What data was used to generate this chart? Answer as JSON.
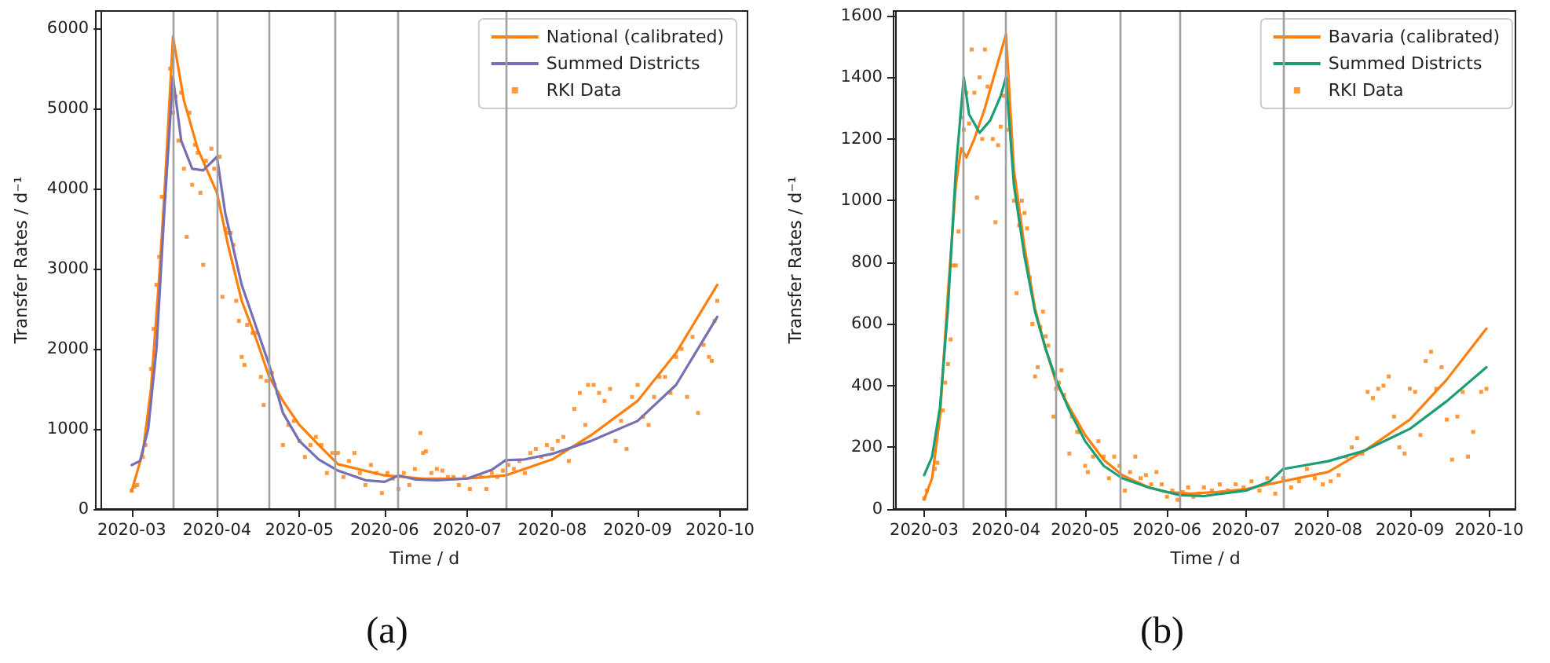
{
  "chart_data": [
    {
      "type": "line",
      "xlabel": "Time / d",
      "ylabel": "Transfer Rates / d⁻¹",
      "annotations": [
        "(a)"
      ],
      "xlim": [
        "2020-02-19",
        "2020-10-11"
      ],
      "xticks": [
        "2020-03",
        "2020-04",
        "2020-05",
        "2020-06",
        "2020-07",
        "2020-08",
        "2020-09",
        "2020-10"
      ],
      "ylim": [
        0,
        6220
      ],
      "yticks": [
        0,
        1000,
        2000,
        3000,
        4000,
        5000,
        6000
      ],
      "grid": false,
      "legend": "top right",
      "marker": "none",
      "line_style": "solid",
      "ref_lines": [
        {
          "axis": "x",
          "value": "2020-03-16",
          "color": "#a0a0a0"
        },
        {
          "axis": "x",
          "value": "2020-04-01",
          "color": "#a0a0a0"
        },
        {
          "axis": "x",
          "value": "2020-04-20",
          "color": "#a0a0a0"
        },
        {
          "axis": "x",
          "value": "2020-05-14",
          "color": "#a0a0a0"
        },
        {
          "axis": "x",
          "value": "2020-06-06",
          "color": "#a0a0a0"
        },
        {
          "axis": "x",
          "value": "2020-07-15",
          "color": "#a0a0a0"
        }
      ],
      "series": [
        {
          "name": "National (calibrated)",
          "color": "#ff7f0e",
          "x": [
            "2020-03-01",
            "2020-03-05",
            "2020-03-08",
            "2020-03-11",
            "2020-03-13",
            "2020-03-16",
            "2020-03-20",
            "2020-03-25",
            "2020-04-01",
            "2020-04-05",
            "2020-04-10",
            "2020-04-15",
            "2020-04-20",
            "2020-04-25",
            "2020-05-01",
            "2020-05-08",
            "2020-05-15",
            "2020-06-01",
            "2020-06-15",
            "2020-07-01",
            "2020-07-15",
            "2020-08-01",
            "2020-08-15",
            "2020-09-01",
            "2020-09-15",
            "2020-09-30"
          ],
          "values": [
            230,
            700,
            1500,
            2900,
            4000,
            5900,
            5100,
            4500,
            3950,
            3300,
            2600,
            2150,
            1650,
            1350,
            1050,
            800,
            560,
            420,
            380,
            380,
            420,
            620,
            920,
            1350,
            1950,
            2800
          ]
        },
        {
          "name": "Summed Districts",
          "color": "#7570b3",
          "x": [
            "2020-03-01",
            "2020-03-04",
            "2020-03-07",
            "2020-03-10",
            "2020-03-13",
            "2020-03-16",
            "2020-03-19",
            "2020-03-23",
            "2020-03-27",
            "2020-04-01",
            "2020-04-04",
            "2020-04-10",
            "2020-04-15",
            "2020-04-20",
            "2020-04-25",
            "2020-05-01",
            "2020-05-08",
            "2020-05-15",
            "2020-05-25",
            "2020-06-01",
            "2020-06-06",
            "2020-06-12",
            "2020-06-20",
            "2020-07-01",
            "2020-07-10",
            "2020-07-15",
            "2020-07-22",
            "2020-08-01",
            "2020-08-15",
            "2020-09-01",
            "2020-09-15",
            "2020-09-30"
          ],
          "values": [
            550,
            600,
            1000,
            2000,
            3800,
            5400,
            4600,
            4250,
            4230,
            4400,
            3700,
            2800,
            2300,
            1800,
            1200,
            850,
            620,
            480,
            360,
            340,
            420,
            370,
            360,
            380,
            490,
            610,
            620,
            690,
            850,
            1100,
            1550,
            2400
          ]
        },
        {
          "name": "RKI Data",
          "type": "scatter",
          "marker": "square",
          "color": "#ff7f0e",
          "x": [
            "2020-03-01",
            "2020-03-02",
            "2020-03-03",
            "2020-03-05",
            "2020-03-06",
            "2020-03-07",
            "2020-03-08",
            "2020-03-09",
            "2020-03-10",
            "2020-03-11",
            "2020-03-12",
            "2020-03-13",
            "2020-03-15",
            "2020-03-16",
            "2020-03-17",
            "2020-03-18",
            "2020-03-19",
            "2020-03-20",
            "2020-03-21",
            "2020-03-22",
            "2020-03-23",
            "2020-03-24",
            "2020-03-25",
            "2020-03-26",
            "2020-03-27",
            "2020-03-28",
            "2020-03-30",
            "2020-03-31",
            "2020-04-02",
            "2020-04-03",
            "2020-04-04",
            "2020-04-05",
            "2020-04-06",
            "2020-04-07",
            "2020-04-08",
            "2020-04-09",
            "2020-04-10",
            "2020-04-11",
            "2020-04-12",
            "2020-04-14",
            "2020-04-15",
            "2020-04-17",
            "2020-04-18",
            "2020-04-19",
            "2020-04-21",
            "2020-04-22",
            "2020-04-23",
            "2020-04-25",
            "2020-04-27",
            "2020-04-29",
            "2020-05-01",
            "2020-05-03",
            "2020-05-05",
            "2020-05-07",
            "2020-05-09",
            "2020-05-11",
            "2020-05-13",
            "2020-05-15",
            "2020-05-17",
            "2020-05-19",
            "2020-05-21",
            "2020-05-23",
            "2020-05-25",
            "2020-05-27",
            "2020-05-29",
            "2020-05-31",
            "2020-06-02",
            "2020-06-04",
            "2020-06-06",
            "2020-06-08",
            "2020-06-10",
            "2020-06-12",
            "2020-06-14",
            "2020-06-15",
            "2020-06-16",
            "2020-06-18",
            "2020-06-20",
            "2020-06-22",
            "2020-06-24",
            "2020-06-26",
            "2020-06-28",
            "2020-06-30",
            "2020-07-02",
            "2020-07-04",
            "2020-07-06",
            "2020-07-08",
            "2020-07-10",
            "2020-07-12",
            "2020-07-14",
            "2020-07-16",
            "2020-07-18",
            "2020-07-20",
            "2020-07-22",
            "2020-07-24",
            "2020-07-26",
            "2020-07-28",
            "2020-07-30",
            "2020-08-01",
            "2020-08-03",
            "2020-08-05",
            "2020-08-07",
            "2020-08-09",
            "2020-08-11",
            "2020-08-13",
            "2020-08-14",
            "2020-08-16",
            "2020-08-18",
            "2020-08-20",
            "2020-08-22",
            "2020-08-24",
            "2020-08-26",
            "2020-08-28",
            "2020-08-30",
            "2020-09-01",
            "2020-09-03",
            "2020-09-05",
            "2020-09-07",
            "2020-09-09",
            "2020-09-11",
            "2020-09-13",
            "2020-09-15",
            "2020-09-17",
            "2020-09-19",
            "2020-09-21",
            "2020-09-23",
            "2020-09-25",
            "2020-09-27",
            "2020-09-28",
            "2020-09-29",
            "2020-09-30"
          ],
          "values": [
            230,
            280,
            300,
            650,
            800,
            1100,
            1750,
            2250,
            2800,
            3150,
            3900,
            3900,
            5500,
            4950,
            5150,
            4600,
            5200,
            4250,
            3400,
            4950,
            4050,
            4550,
            4450,
            3950,
            3050,
            4350,
            4500,
            4250,
            4400,
            2650,
            3500,
            3450,
            3450,
            3300,
            2600,
            2350,
            1900,
            1800,
            2300,
            2200,
            2200,
            1650,
            1300,
            1600,
            1700,
            1550,
            1450,
            800,
            1050,
            1100,
            850,
            650,
            800,
            900,
            800,
            450,
            700,
            700,
            400,
            600,
            700,
            450,
            300,
            550,
            450,
            200,
            450,
            380,
            250,
            450,
            300,
            500,
            950,
            700,
            720,
            450,
            500,
            480,
            400,
            400,
            300,
            400,
            250,
            400,
            400,
            250,
            450,
            400,
            480,
            550,
            500,
            600,
            450,
            700,
            750,
            650,
            800,
            750,
            850,
            900,
            600,
            1250,
            1450,
            1050,
            1550,
            1550,
            1450,
            1350,
            1500,
            850,
            1100,
            750,
            1400,
            1550,
            1150,
            1050,
            1400,
            1650,
            1650,
            1450,
            1900,
            2000,
            1400,
            2150,
            1200,
            2050,
            1900,
            1850,
            2350,
            2600
          ]
        }
      ]
    },
    {
      "type": "line",
      "xlabel": "Time / d",
      "ylabel": "Transfer Rates / d⁻¹",
      "annotations": [
        "(b)"
      ],
      "xlim": [
        "2020-02-19",
        "2020-10-11"
      ],
      "xticks": [
        "2020-03",
        "2020-04",
        "2020-05",
        "2020-06",
        "2020-07",
        "2020-08",
        "2020-09",
        "2020-10"
      ],
      "ylim": [
        0,
        1615
      ],
      "yticks": [
        0,
        200,
        400,
        600,
        800,
        1000,
        1200,
        1400,
        1600
      ],
      "grid": false,
      "legend": "top right",
      "marker": "none",
      "line_style": "solid",
      "ref_lines": [
        {
          "axis": "x",
          "value": "2020-03-16",
          "color": "#a0a0a0"
        },
        {
          "axis": "x",
          "value": "2020-04-01",
          "color": "#a0a0a0"
        },
        {
          "axis": "x",
          "value": "2020-04-20",
          "color": "#a0a0a0"
        },
        {
          "axis": "x",
          "value": "2020-05-14",
          "color": "#a0a0a0"
        },
        {
          "axis": "x",
          "value": "2020-06-06",
          "color": "#a0a0a0"
        },
        {
          "axis": "x",
          "value": "2020-07-15",
          "color": "#a0a0a0"
        }
      ],
      "series": [
        {
          "name": "Bavaria (calibrated)",
          "color": "#ff7f0e",
          "x": [
            "2020-03-01",
            "2020-03-04",
            "2020-03-07",
            "2020-03-10",
            "2020-03-13",
            "2020-03-15",
            "2020-03-17",
            "2020-03-20",
            "2020-03-24",
            "2020-03-28",
            "2020-04-01",
            "2020-04-04",
            "2020-04-08",
            "2020-04-12",
            "2020-04-16",
            "2020-04-20",
            "2020-04-25",
            "2020-05-01",
            "2020-05-08",
            "2020-05-15",
            "2020-05-25",
            "2020-06-01",
            "2020-06-10",
            "2020-06-20",
            "2020-07-01",
            "2020-07-15",
            "2020-08-01",
            "2020-08-15",
            "2020-09-01",
            "2020-09-15",
            "2020-09-30"
          ],
          "values": [
            30,
            100,
            300,
            700,
            1050,
            1170,
            1140,
            1200,
            1300,
            1420,
            1540,
            1100,
            850,
            650,
            520,
            410,
            330,
            240,
            160,
            110,
            70,
            55,
            50,
            55,
            65,
            90,
            120,
            190,
            290,
            420,
            585
          ]
        },
        {
          "name": "Summed Districts",
          "color": "#1b9e77",
          "x": [
            "2020-03-01",
            "2020-03-04",
            "2020-03-07",
            "2020-03-10",
            "2020-03-13",
            "2020-03-16",
            "2020-03-18",
            "2020-03-22",
            "2020-03-26",
            "2020-03-30",
            "2020-04-01",
            "2020-04-04",
            "2020-04-08",
            "2020-04-12",
            "2020-04-16",
            "2020-04-20",
            "2020-04-25",
            "2020-05-01",
            "2020-05-08",
            "2020-05-15",
            "2020-05-25",
            "2020-06-01",
            "2020-06-06",
            "2020-06-15",
            "2020-07-01",
            "2020-07-10",
            "2020-07-15",
            "2020-07-22",
            "2020-08-01",
            "2020-08-15",
            "2020-09-01",
            "2020-09-15",
            "2020-09-30"
          ],
          "values": [
            110,
            170,
            330,
            650,
            1100,
            1400,
            1280,
            1220,
            1260,
            1340,
            1400,
            1050,
            820,
            640,
            520,
            420,
            320,
            220,
            140,
            100,
            70,
            55,
            45,
            42,
            60,
            90,
            130,
            140,
            155,
            190,
            260,
            350,
            460
          ]
        },
        {
          "name": "RKI Data",
          "type": "scatter",
          "marker": "square",
          "color": "#ff7f0e",
          "x": [
            "2020-03-01",
            "2020-03-02",
            "2020-03-05",
            "2020-03-06",
            "2020-03-08",
            "2020-03-09",
            "2020-03-10",
            "2020-03-11",
            "2020-03-12",
            "2020-03-13",
            "2020-03-14",
            "2020-03-15",
            "2020-03-16",
            "2020-03-17",
            "2020-03-18",
            "2020-03-19",
            "2020-03-20",
            "2020-03-21",
            "2020-03-22",
            "2020-03-23",
            "2020-03-24",
            "2020-03-25",
            "2020-03-27",
            "2020-03-28",
            "2020-03-29",
            "2020-03-30",
            "2020-03-31",
            "2020-04-02",
            "2020-04-04",
            "2020-04-05",
            "2020-04-06",
            "2020-04-07",
            "2020-04-08",
            "2020-04-09",
            "2020-04-10",
            "2020-04-11",
            "2020-04-12",
            "2020-04-13",
            "2020-04-14",
            "2020-04-15",
            "2020-04-16",
            "2020-04-17",
            "2020-04-19",
            "2020-04-20",
            "2020-04-21",
            "2020-04-22",
            "2020-04-23",
            "2020-04-25",
            "2020-04-26",
            "2020-04-28",
            "2020-04-29",
            "2020-05-01",
            "2020-05-02",
            "2020-05-04",
            "2020-05-06",
            "2020-05-08",
            "2020-05-10",
            "2020-05-12",
            "2020-05-14",
            "2020-05-16",
            "2020-05-18",
            "2020-05-20",
            "2020-05-22",
            "2020-05-24",
            "2020-05-26",
            "2020-05-28",
            "2020-05-30",
            "2020-06-01",
            "2020-06-03",
            "2020-06-05",
            "2020-06-07",
            "2020-06-09",
            "2020-06-11",
            "2020-06-13",
            "2020-06-15",
            "2020-06-18",
            "2020-06-21",
            "2020-06-24",
            "2020-06-27",
            "2020-06-30",
            "2020-07-03",
            "2020-07-06",
            "2020-07-09",
            "2020-07-12",
            "2020-07-15",
            "2020-07-18",
            "2020-07-21",
            "2020-07-24",
            "2020-07-27",
            "2020-07-30",
            "2020-08-02",
            "2020-08-05",
            "2020-08-08",
            "2020-08-10",
            "2020-08-12",
            "2020-08-14",
            "2020-08-16",
            "2020-08-18",
            "2020-08-20",
            "2020-08-22",
            "2020-08-24",
            "2020-08-26",
            "2020-08-28",
            "2020-08-30",
            "2020-09-01",
            "2020-09-03",
            "2020-09-05",
            "2020-09-07",
            "2020-09-09",
            "2020-09-11",
            "2020-09-13",
            "2020-09-15",
            "2020-09-17",
            "2020-09-19",
            "2020-09-21",
            "2020-09-23",
            "2020-09-25",
            "2020-09-28",
            "2020-09-30"
          ],
          "values": [
            35,
            60,
            130,
            150,
            320,
            410,
            470,
            550,
            790,
            790,
            900,
            1270,
            1230,
            1350,
            1250,
            1490,
            1350,
            1010,
            1400,
            1200,
            1490,
            1370,
            1200,
            930,
            1180,
            1240,
            1340,
            1230,
            1000,
            700,
            920,
            1000,
            960,
            910,
            750,
            600,
            430,
            460,
            590,
            640,
            560,
            530,
            300,
            390,
            410,
            450,
            370,
            180,
            300,
            250,
            250,
            140,
            120,
            170,
            220,
            170,
            100,
            170,
            140,
            60,
            120,
            170,
            100,
            110,
            80,
            120,
            80,
            40,
            60,
            30,
            55,
            70,
            40,
            50,
            70,
            60,
            80,
            60,
            80,
            70,
            90,
            60,
            100,
            50,
            100,
            70,
            90,
            130,
            100,
            80,
            90,
            110,
            170,
            200,
            230,
            180,
            380,
            360,
            390,
            400,
            430,
            300,
            200,
            180,
            390,
            380,
            240,
            480,
            510,
            390,
            460,
            290,
            160,
            300,
            380,
            170,
            250,
            380,
            390
          ]
        }
      ]
    }
  ]
}
